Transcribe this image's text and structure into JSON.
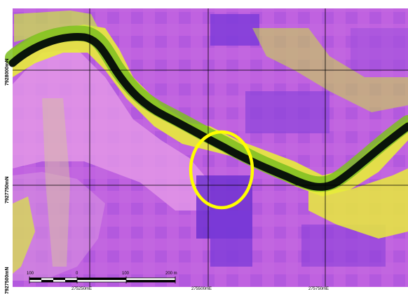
{
  "map": {
    "northing_labels": [
      "7928000mN",
      "7927750mN",
      "7927500mN"
    ],
    "easting_labels": [
      "275250mE",
      "275500mE",
      "275750mE"
    ],
    "scale_bar": {
      "labels": [
        "100",
        "0",
        "100",
        "200 m"
      ]
    },
    "highlight": {
      "shape": "ellipse",
      "color": "#ffff00"
    },
    "colors": {
      "magenta": "#c062e0",
      "pink": "#e79de8",
      "purple": "#7a3ad8",
      "yellow": "#e8ec3a",
      "green": "#7cc020",
      "black": "#0a140a"
    }
  }
}
